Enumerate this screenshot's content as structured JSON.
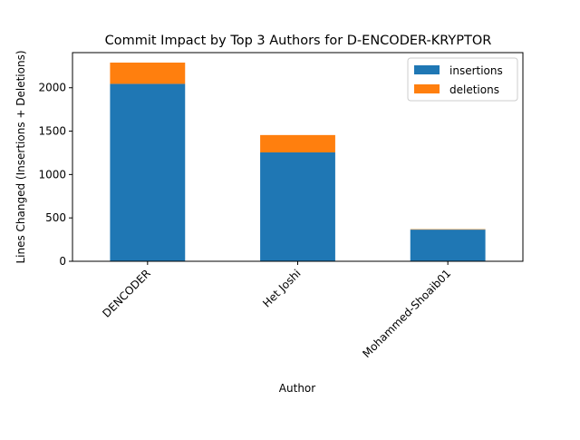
{
  "chart_data": {
    "type": "bar",
    "stacked": true,
    "title": "Commit Impact by Top 3 Authors for D-ENCODER-KRYPTOR",
    "xlabel": "Author",
    "ylabel": "Lines Changed (Insertions + Deletions)",
    "categories": [
      "DENCODER",
      "Het Joshi",
      "Mohammed-Shoaib01"
    ],
    "series": [
      {
        "name": "insertions",
        "color": "#1f77b4",
        "values": [
          2045,
          1255,
          365
        ]
      },
      {
        "name": "deletions",
        "color": "#ff7f0e",
        "values": [
          245,
          200,
          5
        ]
      }
    ],
    "ylim": [
      0,
      2405
    ],
    "yticks": [
      0,
      500,
      1000,
      1500,
      2000
    ],
    "grid": false,
    "legend_position": "top-right",
    "x_tick_rotation": 45
  }
}
